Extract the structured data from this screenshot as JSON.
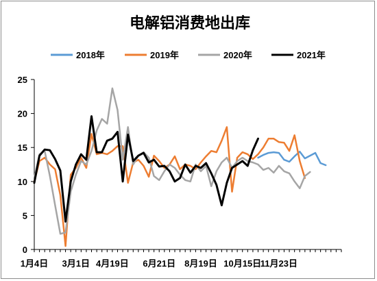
{
  "chart_data": {
    "type": "line",
    "title": "电解铝消费地出库",
    "xlabel": "",
    "ylabel": "",
    "ylim": [
      0,
      25
    ],
    "yticks": [
      0,
      5,
      10,
      15,
      20,
      25
    ],
    "x_ticks": [
      "1月4日",
      "3月1日",
      "4月19日",
      "6月21日",
      "8月19日",
      "10月15日",
      "11月23日"
    ],
    "x_tick_positions": [
      0,
      8,
      15,
      24,
      32,
      40,
      47
    ],
    "x_count": 60,
    "legend_position": "top",
    "grid": false,
    "series": [
      {
        "name": "2018年",
        "color": "#5b9bd5",
        "start": 43,
        "values": [
          13.5,
          13.9,
          14.2,
          14.3,
          14.2,
          13.2,
          12.9,
          13.7,
          14.4,
          13.4,
          13.8,
          14.2,
          12.7,
          12.4
        ]
      },
      {
        "name": "2019年",
        "color": "#ed7d31",
        "start": 0,
        "values": [
          10.0,
          13.0,
          13.5,
          12.5,
          11.8,
          8.0,
          0.5,
          11.0,
          12.0,
          13.5,
          12.0,
          17.0,
          14.0,
          14.2,
          14.0,
          14.5,
          15.2,
          15.2,
          9.8,
          12.8,
          13.2,
          12.3,
          10.7,
          13.8,
          13.0,
          12.0,
          12.5,
          13.7,
          11.8,
          12.5,
          12.3,
          11.8,
          12.8,
          13.7,
          14.5,
          14.3,
          16.0,
          18.0,
          8.5,
          13.5,
          14.3,
          14.0,
          13.3,
          14.0,
          15.0,
          16.3,
          16.3,
          15.8,
          15.7,
          14.5,
          16.8,
          13.0,
          10.5
        ]
      },
      {
        "name": "2020年",
        "color": "#a5a5a5",
        "start": 0,
        "values": [
          10.5,
          14.0,
          14.5,
          10.8,
          6.5,
          2.3,
          2.5,
          8.5,
          11.0,
          13.0,
          12.5,
          14.5,
          17.5,
          19.2,
          18.5,
          23.7,
          20.5,
          13.2,
          18.0,
          12.5,
          13.8,
          14.3,
          13.5,
          10.8,
          10.2,
          11.5,
          12.5,
          12.0,
          11.0,
          10.2,
          10.0,
          12.5,
          11.5,
          12.3,
          9.3,
          11.5,
          12.8,
          13.5,
          12.0,
          13.0,
          13.5,
          13.0,
          12.8,
          12.5,
          11.7,
          12.0,
          11.3,
          12.3,
          11.5,
          11.2,
          10.0,
          9.0,
          10.8,
          11.4
        ]
      },
      {
        "name": "2021年",
        "color": "#000000",
        "start": 0,
        "values": [
          9.8,
          13.8,
          14.7,
          14.6,
          13.3,
          11.6,
          4.1,
          10.0,
          12.5,
          14.0,
          13.2,
          19.6,
          14.3,
          14.3,
          16.0,
          16.3,
          17.3,
          10.0,
          16.9,
          13.0,
          13.8,
          14.2,
          12.8,
          13.2,
          12.2,
          12.3,
          11.5,
          10.0,
          10.5,
          12.5,
          11.3,
          12.3,
          12.0,
          12.7,
          11.2,
          9.5,
          6.5,
          9.8,
          12.0,
          12.5,
          13.0,
          12.3,
          14.6,
          16.3
        ]
      }
    ]
  }
}
